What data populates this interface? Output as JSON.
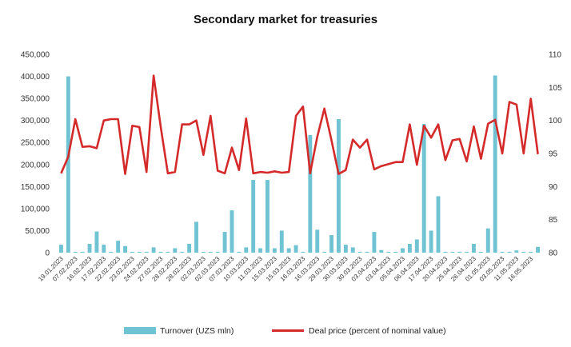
{
  "chart_data": {
    "type": "bar+line",
    "title": "Secondary market for treasuries",
    "left_axis": {
      "ylim": [
        0,
        450000
      ],
      "ticks": [
        "0",
        "50,000",
        "100,000",
        "150,000",
        "200,000",
        "250,000",
        "300,000",
        "350,000",
        "400,000",
        "450,000"
      ],
      "tick_values": [
        0,
        50000,
        100000,
        150000,
        200000,
        250000,
        300000,
        350000,
        400000,
        450000
      ]
    },
    "right_axis": {
      "ylim": [
        80,
        110
      ],
      "ticks": [
        "80",
        "85",
        "90",
        "95",
        "100",
        "105",
        "110"
      ],
      "tick_values": [
        80,
        85,
        90,
        95,
        100,
        105,
        110
      ]
    },
    "x_tick_labels": [
      "19.01.2023",
      "07.02.2023",
      "16.02.2023",
      "17.02.2023",
      "22.02.2023",
      "23.02.2023",
      "24.02.2023",
      "27.02.2023",
      "28.02.2023",
      "28.02.2023",
      "02.03.2023",
      "02.03.2023",
      "07.03.2023",
      "10.03.2023",
      "11.03.2023",
      "15.03.2023",
      "15.03.2023",
      "16.03.2023",
      "16.03.2023",
      "29.03.2023",
      "30.03.2023",
      "30.03.2023",
      "03.04.2023",
      "03.04.2023",
      "05.04.2023",
      "06.04.2023",
      "17.04.2023",
      "20.04.2023",
      "25.04.2023",
      "26.04.2023",
      "01.05.2023",
      "03.05.2023",
      "11.05.2023",
      "16.05.2023"
    ],
    "n_points": 68,
    "series": [
      {
        "name": "Turnover (UZS mln)",
        "type": "bar",
        "axis": "left",
        "color": "#6FC3D2",
        "values": [
          18000,
          400000,
          2000,
          2000,
          20000,
          48000,
          18000,
          2000,
          27000,
          15000,
          2000,
          2000,
          2000,
          12000,
          2000,
          2000,
          10000,
          2000,
          20000,
          70000,
          2000,
          2000,
          2000,
          47000,
          96000,
          2000,
          12000,
          165000,
          10000,
          165000,
          10000,
          50000,
          10000,
          17000,
          2000,
          267000,
          52000,
          2000,
          40000,
          303000,
          18000,
          12000,
          2000,
          2000,
          47000,
          6000,
          2000,
          2000,
          10000,
          20000,
          30000,
          292000,
          50000,
          128000,
          2000,
          2000,
          2000,
          2000,
          20000,
          2000,
          55000,
          402000,
          2000,
          2000,
          5000,
          2000,
          2000,
          13000
        ]
      },
      {
        "name": "Deal price (percent of nominal value)",
        "type": "line",
        "axis": "right",
        "color": "#D42A2A",
        "values": [
          92.0,
          94.5,
          100.2,
          96.0,
          96.1,
          95.8,
          100.0,
          100.2,
          100.2,
          91.9,
          99.2,
          99.0,
          92.2,
          106.8,
          99.0,
          92.0,
          92.2,
          99.4,
          99.4,
          100.0,
          94.8,
          100.7,
          92.4,
          92.0,
          95.9,
          92.5,
          100.3,
          92.0,
          92.2,
          92.1,
          92.3,
          92.1,
          92.2,
          100.7,
          102.1,
          92.0,
          97.5,
          101.8,
          97.0,
          91.9,
          92.5,
          97.1,
          95.9,
          97.1,
          92.6,
          93.1,
          93.4,
          93.7,
          93.7,
          99.4,
          93.3,
          99.2,
          97.4,
          99.4,
          94.0,
          97.0,
          97.2,
          93.8,
          99.1,
          94.2,
          99.5,
          100.1,
          95.0,
          102.8,
          102.4,
          95.0,
          103.3,
          94.9
        ]
      }
    ],
    "legend": {
      "position": "bottom",
      "items": [
        "Turnover (UZS mln)",
        "Deal price (percent of nominal value)"
      ]
    }
  }
}
